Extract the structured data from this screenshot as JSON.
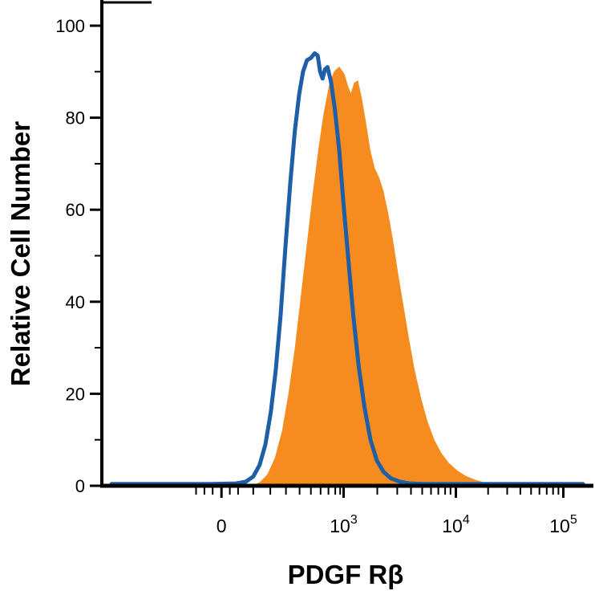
{
  "chart_data": {
    "type": "area",
    "title": "",
    "xlabel": "PDGF Rβ",
    "ylabel": "Relative Cell Number",
    "x_scale": "biexponential-log (flow cytometry)",
    "x_units": "fraction-of-plot-width",
    "ylim": [
      0,
      105
    ],
    "grid": false,
    "background": "#ffffff",
    "axis_color": "#000000",
    "x_axis": {
      "major_ticks": [
        {
          "label": "0",
          "f": 0.245
        },
        {
          "label": "10^3",
          "base": "10",
          "exp": "3",
          "f": 0.495
        },
        {
          "label": "10^4",
          "base": "10",
          "exp": "4",
          "f": 0.725
        },
        {
          "label": "10^5",
          "base": "10",
          "exp": "5",
          "f": 0.945
        }
      ],
      "minor_tick_f": [
        0.193,
        0.21,
        0.227,
        0.262,
        0.279,
        0.31,
        0.345,
        0.377,
        0.405,
        0.428,
        0.448,
        0.464,
        0.478,
        0.488,
        0.564,
        0.605,
        0.633,
        0.656,
        0.674,
        0.689,
        0.703,
        0.714,
        0.791,
        0.83,
        0.857,
        0.879,
        0.896,
        0.911,
        0.924,
        0.935
      ]
    },
    "y_axis": {
      "major_ticks": [
        0,
        20,
        40,
        60,
        80,
        100
      ],
      "minor_ticks": [
        10,
        30,
        50,
        70,
        90
      ]
    },
    "series": [
      {
        "name": "filled-orange-histogram",
        "style": "filled-area",
        "color": "#F68B1F",
        "peak_y": 91,
        "points": [
          [
            0.31,
            0
          ],
          [
            0.325,
            0.8
          ],
          [
            0.34,
            2.5
          ],
          [
            0.355,
            6
          ],
          [
            0.37,
            12
          ],
          [
            0.383,
            20
          ],
          [
            0.396,
            30
          ],
          [
            0.408,
            41
          ],
          [
            0.42,
            52
          ],
          [
            0.432,
            63
          ],
          [
            0.444,
            73
          ],
          [
            0.455,
            81
          ],
          [
            0.466,
            87
          ],
          [
            0.476,
            90
          ],
          [
            0.486,
            91
          ],
          [
            0.496,
            89.5
          ],
          [
            0.503,
            87
          ],
          [
            0.51,
            85
          ],
          [
            0.517,
            87.5
          ],
          [
            0.524,
            88
          ],
          [
            0.532,
            84
          ],
          [
            0.54,
            79
          ],
          [
            0.549,
            73
          ],
          [
            0.558,
            69
          ],
          [
            0.567,
            67
          ],
          [
            0.576,
            64
          ],
          [
            0.586,
            59
          ],
          [
            0.596,
            53
          ],
          [
            0.606,
            46
          ],
          [
            0.617,
            39
          ],
          [
            0.628,
            32
          ],
          [
            0.64,
            25
          ],
          [
            0.653,
            19
          ],
          [
            0.666,
            14
          ],
          [
            0.68,
            10
          ],
          [
            0.695,
            7
          ],
          [
            0.711,
            4.8
          ],
          [
            0.728,
            3.2
          ],
          [
            0.746,
            2
          ],
          [
            0.765,
            1.2
          ],
          [
            0.785,
            0.6
          ],
          [
            0.81,
            0.3
          ],
          [
            0.84,
            0.1
          ],
          [
            0.865,
            0
          ]
        ]
      },
      {
        "name": "open-blue-line-histogram",
        "style": "line",
        "color": "#1F5FA8",
        "peak_y": 94,
        "points": [
          [
            0.02,
            0.4
          ],
          [
            0.12,
            0.4
          ],
          [
            0.22,
            0.4
          ],
          [
            0.275,
            0.5
          ],
          [
            0.295,
            0.9
          ],
          [
            0.31,
            2
          ],
          [
            0.323,
            4.5
          ],
          [
            0.335,
            9
          ],
          [
            0.346,
            16
          ],
          [
            0.356,
            25
          ],
          [
            0.366,
            37
          ],
          [
            0.376,
            52
          ],
          [
            0.386,
            66
          ],
          [
            0.395,
            77
          ],
          [
            0.404,
            85
          ],
          [
            0.412,
            90
          ],
          [
            0.42,
            92.5
          ],
          [
            0.428,
            93
          ],
          [
            0.436,
            94
          ],
          [
            0.442,
            93.5
          ],
          [
            0.447,
            90
          ],
          [
            0.452,
            88.5
          ],
          [
            0.457,
            90.5
          ],
          [
            0.462,
            91
          ],
          [
            0.469,
            88
          ],
          [
            0.477,
            82
          ],
          [
            0.486,
            73
          ],
          [
            0.495,
            61
          ],
          [
            0.505,
            49
          ],
          [
            0.515,
            37
          ],
          [
            0.526,
            26
          ],
          [
            0.538,
            17
          ],
          [
            0.55,
            10
          ],
          [
            0.563,
            5.5
          ],
          [
            0.577,
            3
          ],
          [
            0.592,
            1.6
          ],
          [
            0.61,
            0.9
          ],
          [
            0.63,
            0.5
          ],
          [
            0.66,
            0.4
          ],
          [
            0.73,
            0.4
          ],
          [
            0.82,
            0.4
          ],
          [
            0.92,
            0.4
          ],
          [
            0.985,
            0.4
          ]
        ]
      }
    ]
  }
}
